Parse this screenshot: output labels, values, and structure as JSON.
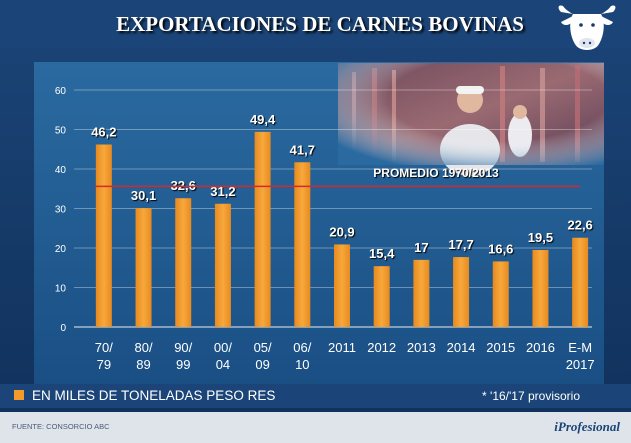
{
  "header": {
    "title": "EXPORTACIONES DE CARNES BOVINAS",
    "logo_icon": "cow-head-icon"
  },
  "photo": {
    "icon": "butcher-photo-icon"
  },
  "average": {
    "label": "PROMEDIO 1970/2013",
    "value": 35.6
  },
  "legend": {
    "label": "EN MILES DE TONELADAS PESO RES",
    "swatch_color": "#f39a2b"
  },
  "note": "* '16/'17 provisorio",
  "footer": {
    "source": "FUENTE: CONSORCIO ABC",
    "brand_prefix": "i",
    "brand_name": "Profesional"
  },
  "colors": {
    "background": "#173a68",
    "plot": "#1f5a8e",
    "bar": "#f39a2b",
    "average_line": "#d42a2a"
  },
  "chart_data": {
    "type": "bar",
    "title": "EXPORTACIONES DE CARNES BOVINAS",
    "ylabel": "EN MILES DE TONELADAS PESO RES",
    "ylim": [
      0,
      60
    ],
    "yticks": [
      0,
      10,
      20,
      30,
      40,
      50,
      60
    ],
    "grid": true,
    "categories": [
      [
        "70/",
        "79"
      ],
      [
        "80/",
        "89"
      ],
      [
        "90/",
        "99"
      ],
      [
        "00/",
        "04"
      ],
      [
        "05/",
        "09"
      ],
      [
        "06/",
        "10"
      ],
      [
        "2011"
      ],
      [
        "2012"
      ],
      [
        "2013"
      ],
      [
        "2014"
      ],
      [
        "2015"
      ],
      [
        "2016"
      ],
      [
        "E-M",
        "2017"
      ]
    ],
    "values": [
      46.2,
      30.1,
      32.6,
      31.2,
      49.4,
      41.7,
      20.9,
      15.4,
      17,
      17.7,
      16.6,
      19.5,
      22.6
    ],
    "value_labels": [
      "46,2",
      "30,1",
      "32,6",
      "31,2",
      "49,4",
      "41,7",
      "20,9",
      "15,4",
      "17",
      "17,7",
      "16,6",
      "19,5",
      "22,6"
    ]
  }
}
